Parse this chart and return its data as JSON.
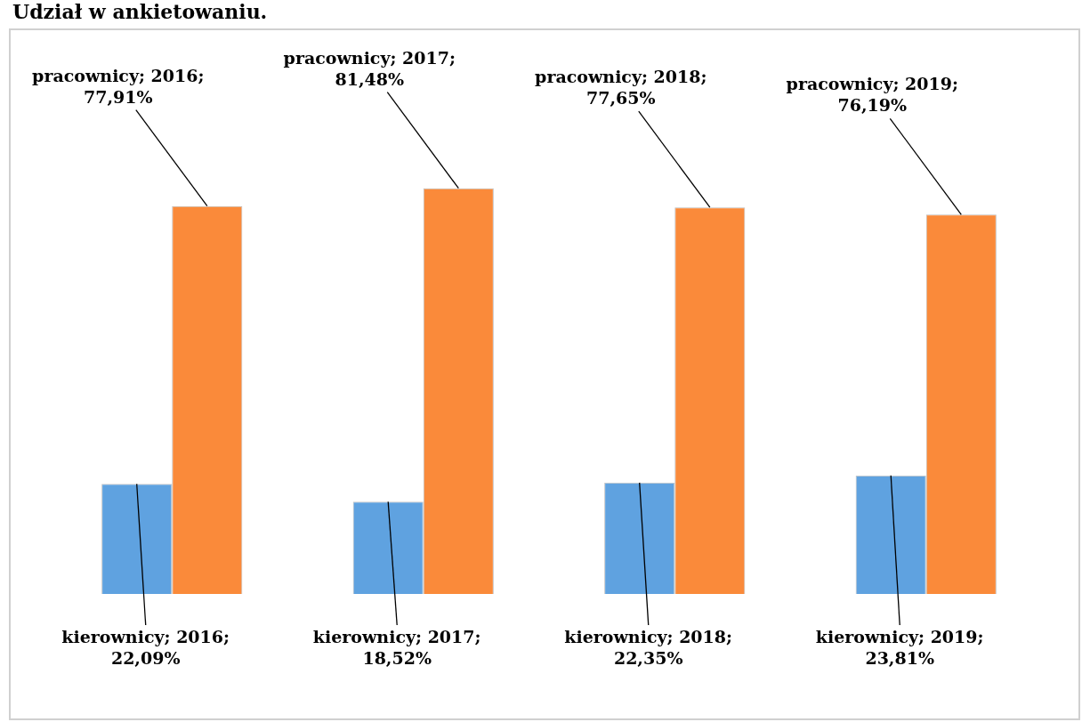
{
  "chart_data": {
    "type": "bar",
    "title": "Udział w ankietowaniu.",
    "categories": [
      null,
      null,
      null,
      null
    ],
    "series": [
      {
        "color": "#5fa2e0",
        "values": [
          22.09,
          18.52,
          22.35,
          23.81
        ],
        "value_labels": [
          "kierownicy; 2016; 22,09%",
          "kierownicy; 2017; 18,52%",
          "kierownicy; 2018; 22,35%",
          "kierownicy; 2019; 23,81%"
        ]
      },
      {
        "color": "#fa8a3a",
        "values": [
          77.91,
          81.48,
          77.65,
          76.19
        ],
        "value_labels": [
          "pracownicy; 2016; 77,91%",
          "pracownicy; 2017; 81,48%",
          "pracownicy; 2018; 77,65%",
          "pracownicy; 2019; 76,19%"
        ]
      }
    ],
    "legend": false
  }
}
